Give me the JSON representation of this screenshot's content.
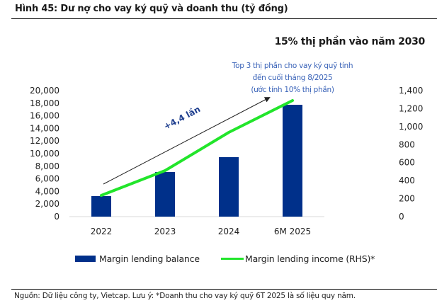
{
  "header": {
    "title": "Hình 45: Dư nợ cho vay ký quỹ và doanh thu (tỷ đồng)",
    "headline": "15% thị phần vào năm 2030"
  },
  "annotations": {
    "note_lines": [
      "Top 3 thị phần cho vay ký quỹ tính",
      "đến cuối tháng 8/2025",
      "(ước tính 10% thị phần)"
    ],
    "growth_label": "+4,4 lần"
  },
  "footer": {
    "source": "Nguồn: Dữ liệu công ty, Vietcap. Lưu ý: *Doanh thu cho vay ký quỹ 6T 2025 là số liệu quy năm."
  },
  "colors": {
    "bar": "#00308a",
    "line": "#22e52b",
    "note": "#3a63b8",
    "growth_label": "#1f3f8f",
    "arrow": "#222222"
  },
  "chart_data": {
    "type": "bar+line",
    "title": "Hình 45: Dư nợ cho vay ký quỹ và doanh thu (tỷ đồng)",
    "categories": [
      "2022",
      "2023",
      "2024",
      "6M 2025"
    ],
    "series": [
      {
        "name": "Margin lending balance",
        "type": "bar",
        "axis": "left",
        "values": [
          3260,
          7080,
          9440,
          17750
        ]
      },
      {
        "name": "Margin lending income (RHS)*",
        "type": "line",
        "axis": "right",
        "values": [
          236,
          511,
          936,
          1290
        ]
      }
    ],
    "ylim_left": [
      0,
      20000
    ],
    "ylim_right": [
      0,
      1400
    ],
    "left_ticks": [
      "0",
      "2,000",
      "4,000",
      "6,000",
      "8,000",
      "10,000",
      "12,000",
      "14,000",
      "16,000",
      "18,000",
      "20,000"
    ],
    "right_ticks": [
      "0",
      "200",
      "400",
      "600",
      "800",
      "1,000",
      "1,200",
      "1,400"
    ],
    "legend_position": "bottom",
    "grid": false
  }
}
